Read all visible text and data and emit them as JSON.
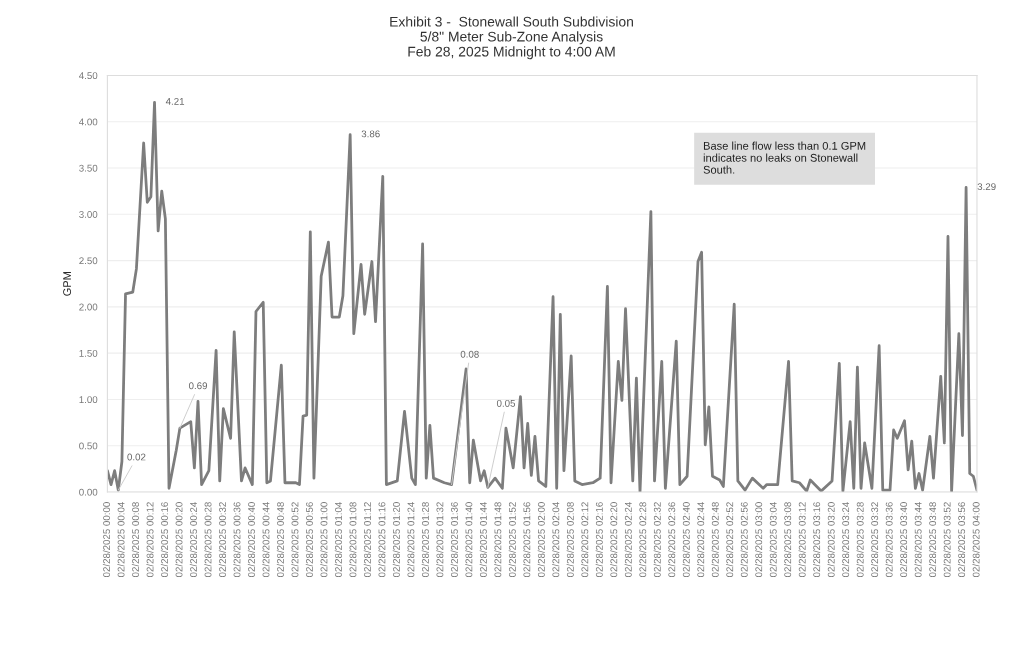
{
  "chart_data": {
    "type": "line",
    "title": "Exhibit 3 -  Stonewall South Subdivision\n5/8\" Meter Sub-Zone Analysis\nFeb 28, 2025 Midnight to 4:00 AM",
    "ylabel": "GPM",
    "series": [
      {
        "color": "#7d7d7d",
        "x": [
          "2025-02-28T00:00",
          "2025-02-28T00:01",
          "2025-02-28T00:02",
          "2025-02-28T00:03",
          "2025-02-28T00:04",
          "2025-02-28T00:05",
          "2025-02-28T00:07",
          "2025-02-28T00:08",
          "2025-02-28T00:10",
          "2025-02-28T00:11",
          "2025-02-28T00:12",
          "2025-02-28T00:13",
          "2025-02-28T00:14",
          "2025-02-28T00:15",
          "2025-02-28T00:16",
          "2025-02-28T00:17",
          "2025-02-28T00:19",
          "2025-02-28T00:20",
          "2025-02-28T00:23",
          "2025-02-28T00:24",
          "2025-02-28T00:25",
          "2025-02-28T00:26",
          "2025-02-28T00:28",
          "2025-02-28T00:30",
          "2025-02-28T00:31",
          "2025-02-28T00:32",
          "2025-02-28T00:34",
          "2025-02-28T00:35",
          "2025-02-28T00:37",
          "2025-02-28T00:38",
          "2025-02-28T00:40",
          "2025-02-28T00:41",
          "2025-02-28T00:43",
          "2025-02-28T00:44",
          "2025-02-28T00:45",
          "2025-02-28T00:48",
          "2025-02-28T00:49",
          "2025-02-28T00:52",
          "2025-02-28T00:53",
          "2025-02-28T00:54",
          "2025-02-28T00:55",
          "2025-02-28T00:56",
          "2025-02-28T00:57",
          "2025-02-28T00:59",
          "2025-02-28T01:01",
          "2025-02-28T01:02",
          "2025-02-28T01:04",
          "2025-02-28T01:05",
          "2025-02-28T01:07",
          "2025-02-28T01:08",
          "2025-02-28T01:10",
          "2025-02-28T01:11",
          "2025-02-28T01:13",
          "2025-02-28T01:14",
          "2025-02-28T01:16",
          "2025-02-28T01:17",
          "2025-02-28T01:20",
          "2025-02-28T01:22",
          "2025-02-28T01:24",
          "2025-02-28T01:25",
          "2025-02-28T01:27",
          "2025-02-28T01:28",
          "2025-02-28T01:29",
          "2025-02-28T01:30",
          "2025-02-28T01:33",
          "2025-02-28T01:35",
          "2025-02-28T01:39",
          "2025-02-28T01:40",
          "2025-02-28T01:41",
          "2025-02-28T01:43",
          "2025-02-28T01:44",
          "2025-02-28T01:45",
          "2025-02-28T01:47",
          "2025-02-28T01:49",
          "2025-02-28T01:50",
          "2025-02-28T01:52",
          "2025-02-28T01:54",
          "2025-02-28T01:55",
          "2025-02-28T01:56",
          "2025-02-28T01:57",
          "2025-02-28T01:58",
          "2025-02-28T01:59",
          "2025-02-28T02:01",
          "2025-02-28T02:03",
          "2025-02-28T02:04",
          "2025-02-28T02:05",
          "2025-02-28T02:06",
          "2025-02-28T02:08",
          "2025-02-28T02:09",
          "2025-02-28T02:11",
          "2025-02-28T02:14",
          "2025-02-28T02:16",
          "2025-02-28T02:18",
          "2025-02-28T02:19",
          "2025-02-28T02:21",
          "2025-02-28T02:22",
          "2025-02-28T02:23",
          "2025-02-28T02:25",
          "2025-02-28T02:26",
          "2025-02-28T02:27",
          "2025-02-28T02:30",
          "2025-02-28T02:31",
          "2025-02-28T02:33",
          "2025-02-28T02:34",
          "2025-02-28T02:37",
          "2025-02-28T02:38",
          "2025-02-28T02:40",
          "2025-02-28T02:43",
          "2025-02-28T02:44",
          "2025-02-28T02:45",
          "2025-02-28T02:46",
          "2025-02-28T02:47",
          "2025-02-28T02:49",
          "2025-02-28T02:50",
          "2025-02-28T02:53",
          "2025-02-28T02:54",
          "2025-02-28T02:56",
          "2025-02-28T02:58",
          "2025-02-28T03:01",
          "2025-02-28T03:02",
          "2025-02-28T03:05",
          "2025-02-28T03:08",
          "2025-02-28T03:09",
          "2025-02-28T03:11",
          "2025-02-28T03:13",
          "2025-02-28T03:14",
          "2025-02-28T03:17",
          "2025-02-28T03:20",
          "2025-02-28T03:22",
          "2025-02-28T03:23",
          "2025-02-28T03:25",
          "2025-02-28T03:26",
          "2025-02-28T03:27",
          "2025-02-28T03:28",
          "2025-02-28T03:29",
          "2025-02-28T03:31",
          "2025-02-28T03:33",
          "2025-02-28T03:34",
          "2025-02-28T03:36",
          "2025-02-28T03:37",
          "2025-02-28T03:38",
          "2025-02-28T03:40",
          "2025-02-28T03:41",
          "2025-02-28T03:42",
          "2025-02-28T03:43",
          "2025-02-28T03:44",
          "2025-02-28T03:45",
          "2025-02-28T03:47",
          "2025-02-28T03:48",
          "2025-02-28T03:50",
          "2025-02-28T03:51",
          "2025-02-28T03:52",
          "2025-02-28T03:53",
          "2025-02-28T03:55",
          "2025-02-28T03:56",
          "2025-02-28T03:57",
          "2025-02-28T03:58",
          "2025-02-28T03:59",
          "2025-02-28T04:00"
        ],
        "values": [
          0.23,
          0.08,
          0.23,
          0.02,
          0.33,
          2.14,
          2.16,
          2.41,
          3.77,
          3.13,
          3.19,
          4.21,
          2.82,
          3.25,
          2.95,
          0.04,
          0.45,
          0.69,
          0.76,
          0.26,
          0.98,
          0.08,
          0.23,
          1.53,
          0.12,
          0.9,
          0.58,
          1.73,
          0.12,
          0.26,
          0.08,
          1.95,
          2.05,
          0.1,
          0.12,
          1.37,
          0.1,
          0.1,
          0.08,
          0.82,
          0.83,
          2.81,
          0.15,
          2.33,
          2.7,
          1.89,
          1.89,
          2.12,
          3.86,
          1.71,
          2.46,
          1.92,
          2.49,
          1.84,
          3.41,
          0.08,
          0.12,
          0.87,
          0.15,
          0.08,
          2.68,
          0.15,
          0.72,
          0.15,
          0.1,
          0.08,
          1.33,
          0.1,
          0.56,
          0.12,
          0.23,
          0.05,
          0.15,
          0.04,
          0.69,
          0.26,
          1.03,
          0.26,
          0.74,
          0.18,
          0.6,
          0.12,
          0.06,
          2.11,
          0.04,
          1.92,
          0.23,
          1.47,
          0.12,
          0.08,
          0.1,
          0.15,
          2.22,
          0.1,
          1.41,
          0.99,
          1.98,
          0.12,
          1.23,
          0.0,
          3.03,
          0.12,
          1.41,
          0.04,
          1.63,
          0.08,
          0.17,
          2.49,
          2.59,
          0.51,
          0.92,
          0.17,
          0.13,
          0.06,
          2.03,
          0.12,
          0.02,
          0.15,
          0.04,
          0.08,
          0.08,
          1.41,
          0.12,
          0.1,
          0.01,
          0.13,
          0.01,
          0.12,
          1.39,
          0.01,
          0.76,
          0.04,
          1.35,
          0.04,
          0.53,
          0.04,
          1.58,
          0.02,
          0.02,
          0.67,
          0.58,
          0.77,
          0.24,
          0.55,
          0.04,
          0.2,
          0.02,
          0.6,
          0.15,
          1.25,
          0.53,
          2.76,
          0.01,
          1.71,
          0.61,
          3.29,
          0.2,
          0.17,
          0.02
        ]
      }
    ],
    "ylim": [
      0,
      4.5
    ],
    "yticks": [
      {
        "value": 0,
        "label": "0.00"
      },
      {
        "value": 0.5,
        "label": "0.50"
      },
      {
        "value": 1,
        "label": "1.00"
      },
      {
        "value": 1.5,
        "label": "1.50"
      },
      {
        "value": 2,
        "label": "2.00"
      },
      {
        "value": 2.5,
        "label": "2.50"
      },
      {
        "value": 3,
        "label": "3.00"
      },
      {
        "value": 3.5,
        "label": "3.50"
      },
      {
        "value": 4,
        "label": "4.00"
      },
      {
        "value": 4.5,
        "label": "4.50"
      }
    ],
    "xlim": [
      "2025-02-28T00:00",
      "2025-02-28T04:00"
    ],
    "xticks": [
      {
        "value": "2025-02-28T00:00",
        "label": "02/28/2025 00:00"
      },
      {
        "value": "2025-02-28T00:04",
        "label": "02/28/2025 00:04"
      },
      {
        "value": "2025-02-28T00:08",
        "label": "02/28/2025 00:08"
      },
      {
        "value": "2025-02-28T00:12",
        "label": "02/28/2025 00:12"
      },
      {
        "value": "2025-02-28T00:16",
        "label": "02/28/2025 00:16"
      },
      {
        "value": "2025-02-28T00:20",
        "label": "02/28/2025 00:20"
      },
      {
        "value": "2025-02-28T00:24",
        "label": "02/28/2025 00:24"
      },
      {
        "value": "2025-02-28T00:28",
        "label": "02/28/2025 00:28"
      },
      {
        "value": "2025-02-28T00:32",
        "label": "02/28/2025 00:32"
      },
      {
        "value": "2025-02-28T00:36",
        "label": "02/28/2025 00:36"
      },
      {
        "value": "2025-02-28T00:40",
        "label": "02/28/2025 00:40"
      },
      {
        "value": "2025-02-28T00:44",
        "label": "02/28/2025 00:44"
      },
      {
        "value": "2025-02-28T00:48",
        "label": "02/28/2025 00:48"
      },
      {
        "value": "2025-02-28T00:52",
        "label": "02/28/2025 00:52"
      },
      {
        "value": "2025-02-28T00:56",
        "label": "02/28/2025 00:56"
      },
      {
        "value": "2025-02-28T01:00",
        "label": "02/28/2025 01:00"
      },
      {
        "value": "2025-02-28T01:04",
        "label": "02/28/2025 01:04"
      },
      {
        "value": "2025-02-28T01:08",
        "label": "02/28/2025 01:08"
      },
      {
        "value": "2025-02-28T01:12",
        "label": "02/28/2025 01:12"
      },
      {
        "value": "2025-02-28T01:16",
        "label": "02/28/2025 01:16"
      },
      {
        "value": "2025-02-28T01:20",
        "label": "02/28/2025 01:20"
      },
      {
        "value": "2025-02-28T01:24",
        "label": "02/28/2025 01:24"
      },
      {
        "value": "2025-02-28T01:28",
        "label": "02/28/2025 01:28"
      },
      {
        "value": "2025-02-28T01:32",
        "label": "02/28/2025 01:32"
      },
      {
        "value": "2025-02-28T01:36",
        "label": "02/28/2025 01:36"
      },
      {
        "value": "2025-02-28T01:40",
        "label": "02/28/2025 01:40"
      },
      {
        "value": "2025-02-28T01:44",
        "label": "02/28/2025 01:44"
      },
      {
        "value": "2025-02-28T01:48",
        "label": "02/28/2025 01:48"
      },
      {
        "value": "2025-02-28T01:52",
        "label": "02/28/2025 01:52"
      },
      {
        "value": "2025-02-28T01:56",
        "label": "02/28/2025 01:56"
      },
      {
        "value": "2025-02-28T02:00",
        "label": "02/28/2025 02:00"
      },
      {
        "value": "2025-02-28T02:04",
        "label": "02/28/2025 02:04"
      },
      {
        "value": "2025-02-28T02:08",
        "label": "02/28/2025 02:08"
      },
      {
        "value": "2025-02-28T02:12",
        "label": "02/28/2025 02:12"
      },
      {
        "value": "2025-02-28T02:16",
        "label": "02/28/2025 02:16"
      },
      {
        "value": "2025-02-28T02:20",
        "label": "02/28/2025 02:20"
      },
      {
        "value": "2025-02-28T02:24",
        "label": "02/28/2025 02:24"
      },
      {
        "value": "2025-02-28T02:28",
        "label": "02/28/2025 02:28"
      },
      {
        "value": "2025-02-28T02:32",
        "label": "02/28/2025 02:32"
      },
      {
        "value": "2025-02-28T02:36",
        "label": "02/28/2025 02:36"
      },
      {
        "value": "2025-02-28T02:40",
        "label": "02/28/2025 02:40"
      },
      {
        "value": "2025-02-28T02:44",
        "label": "02/28/2025 02:44"
      },
      {
        "value": "2025-02-28T02:48",
        "label": "02/28/2025 02:48"
      },
      {
        "value": "2025-02-28T02:52",
        "label": "02/28/2025 02:52"
      },
      {
        "value": "2025-02-28T02:56",
        "label": "02/28/2025 02:56"
      },
      {
        "value": "2025-02-28T03:00",
        "label": "02/28/2025 03:00"
      },
      {
        "value": "2025-02-28T03:04",
        "label": "02/28/2025 03:04"
      },
      {
        "value": "2025-02-28T03:08",
        "label": "02/28/2025 03:08"
      },
      {
        "value": "2025-02-28T03:12",
        "label": "02/28/2025 03:12"
      },
      {
        "value": "2025-02-28T03:16",
        "label": "02/28/2025 03:16"
      },
      {
        "value": "2025-02-28T03:20",
        "label": "02/28/2025 03:20"
      },
      {
        "value": "2025-02-28T03:24",
        "label": "02/28/2025 03:24"
      },
      {
        "value": "2025-02-28T03:28",
        "label": "02/28/2025 03:28"
      },
      {
        "value": "2025-02-28T03:32",
        "label": "02/28/2025 03:32"
      },
      {
        "value": "2025-02-28T03:36",
        "label": "02/28/2025 03:36"
      },
      {
        "value": "2025-02-28T03:40",
        "label": "02/28/2025 03:40"
      },
      {
        "value": "2025-02-28T03:44",
        "label": "02/28/2025 03:44"
      },
      {
        "value": "2025-02-28T03:48",
        "label": "02/28/2025 03:48"
      },
      {
        "value": "2025-02-28T03:52",
        "label": "02/28/2025 03:52"
      },
      {
        "value": "2025-02-28T03:56",
        "label": "02/28/2025 03:56"
      },
      {
        "value": "2025-02-28T04:00",
        "label": "02/28/2025 04:00"
      }
    ],
    "grid": "y",
    "annotations": [
      {
        "text": "0.02",
        "x": "2025-02-28T00:03",
        "y": 0.02
      },
      {
        "text": "4.21",
        "x": "2025-02-28T00:13",
        "y": 4.21
      },
      {
        "text": "0.69",
        "x": "2025-02-28T00:20",
        "y": 0.69
      },
      {
        "text": "3.86",
        "x": "2025-02-28T01:07",
        "y": 3.86
      },
      {
        "text": "0.08",
        "x": "2025-02-28T01:35",
        "y": 0.08
      },
      {
        "text": "0.05",
        "x": "2025-02-28T01:45",
        "y": 0.05
      },
      {
        "text": "3.29",
        "x": "2025-02-28T03:57",
        "y": 3.29
      },
      "Base line flow less than 0.1 GPM\nindicates no leaks on Stonewall\nSouth."
    ]
  }
}
